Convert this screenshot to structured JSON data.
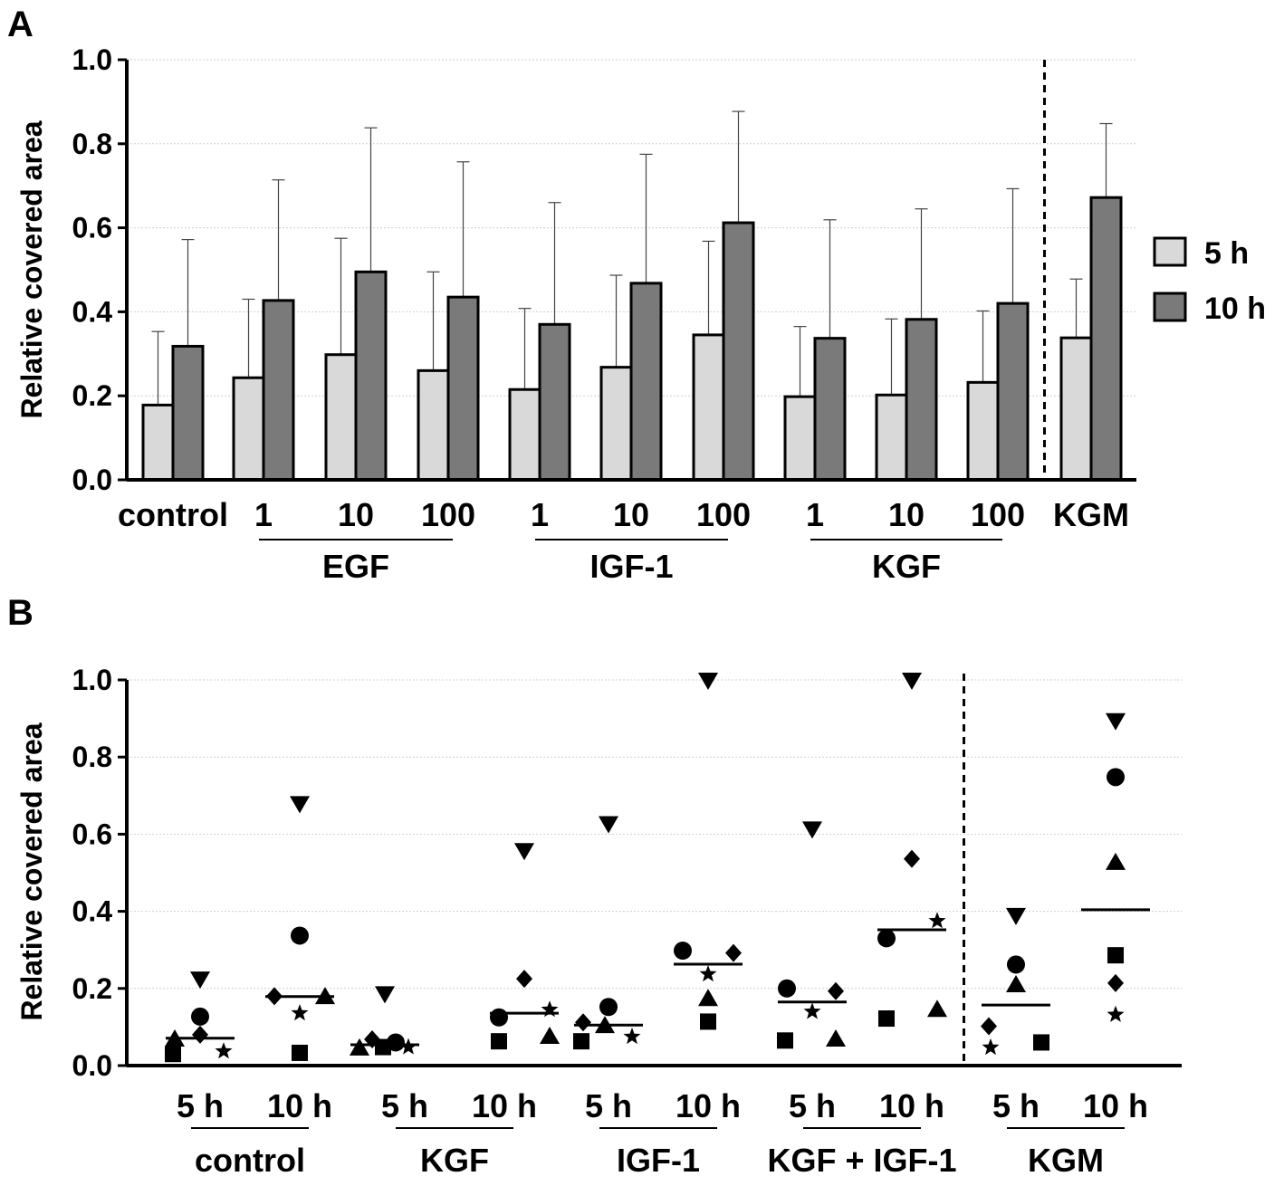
{
  "chart_data": [
    {
      "panel_label": "A",
      "type": "bar",
      "ylabel": "Relative covered area",
      "ylim": [
        0,
        1.0
      ],
      "yticks": [
        "0.0",
        "0.2",
        "0.4",
        "0.6",
        "0.8",
        "1.0"
      ],
      "ytick_values": [
        0,
        0.2,
        0.4,
        0.6,
        0.8,
        1.0
      ],
      "grid": true,
      "legend_position": "right",
      "colors": {
        "5 h": "#d9d9d9",
        "10 h": "#7a7a7a"
      },
      "categories": [
        "control",
        "1",
        "10",
        "100",
        "1",
        "10",
        "100",
        "1",
        "10",
        "100",
        "KGM"
      ],
      "groups": [
        {
          "label": "EGF",
          "from": 1,
          "to": 3
        },
        {
          "label": "IGF-1",
          "from": 4,
          "to": 6
        },
        {
          "label": "KGF",
          "from": 7,
          "to": 9
        }
      ],
      "separator_before_index": 10,
      "series": [
        {
          "name": "5 h",
          "values": [
            0.178,
            0.243,
            0.298,
            0.26,
            0.215,
            0.268,
            0.345,
            0.198,
            0.202,
            0.232,
            0.338
          ],
          "errors": [
            0.175,
            0.187,
            0.277,
            0.235,
            0.193,
            0.219,
            0.223,
            0.167,
            0.181,
            0.17,
            0.14
          ]
        },
        {
          "name": "10 h",
          "values": [
            0.318,
            0.427,
            0.495,
            0.435,
            0.37,
            0.468,
            0.612,
            0.337,
            0.382,
            0.42,
            0.672
          ],
          "errors": [
            0.254,
            0.287,
            0.343,
            0.322,
            0.29,
            0.307,
            0.265,
            0.282,
            0.263,
            0.273,
            0.176
          ]
        }
      ]
    },
    {
      "panel_label": "B",
      "type": "scatter",
      "ylabel": "Relative covered area",
      "ylim": [
        0,
        1.0
      ],
      "yticks": [
        "0.0",
        "0.2",
        "0.4",
        "0.6",
        "0.8",
        "1.0"
      ],
      "ytick_values": [
        0,
        0.2,
        0.4,
        0.6,
        0.8,
        1.0
      ],
      "grid": true,
      "x_labels": [
        "5 h",
        "10 h",
        "5 h",
        "10 h",
        "5 h",
        "10 h",
        "5 h",
        "10 h",
        "5 h",
        "10 h"
      ],
      "groups": [
        "control",
        "KGF",
        "IGF-1",
        "KGF + IGF-1",
        "KGM"
      ],
      "separator_before_index": 8,
      "medians": [
        0.071,
        0.179,
        0.054,
        0.136,
        0.105,
        0.263,
        0.165,
        0.352,
        0.157,
        0.404
      ],
      "points": [
        [
          {
            "m": "tri-down",
            "y": 0.225
          },
          {
            "m": "circle",
            "y": 0.127
          },
          {
            "m": "diamond",
            "y": 0.08
          },
          {
            "m": "triangle",
            "y": 0.068
          },
          {
            "m": "star",
            "y": 0.037
          },
          {
            "m": "square",
            "y": 0.03
          }
        ],
        [
          {
            "m": "tri-down",
            "y": 0.68
          },
          {
            "m": "circle",
            "y": 0.337
          },
          {
            "m": "diamond",
            "y": 0.18
          },
          {
            "m": "triangle",
            "y": 0.178
          },
          {
            "m": "star",
            "y": 0.136
          },
          {
            "m": "square",
            "y": 0.033
          }
        ],
        [
          {
            "m": "tri-down",
            "y": 0.187
          },
          {
            "m": "diamond",
            "y": 0.068
          },
          {
            "m": "circle",
            "y": 0.06
          },
          {
            "m": "star",
            "y": 0.048
          },
          {
            "m": "triangle",
            "y": 0.045
          },
          {
            "m": "square",
            "y": 0.048
          }
        ],
        [
          {
            "m": "tri-down",
            "y": 0.558
          },
          {
            "m": "diamond",
            "y": 0.225
          },
          {
            "m": "star",
            "y": 0.145
          },
          {
            "m": "circle",
            "y": 0.125
          },
          {
            "m": "triangle",
            "y": 0.075
          },
          {
            "m": "square",
            "y": 0.063
          }
        ],
        [
          {
            "m": "tri-down",
            "y": 0.628
          },
          {
            "m": "circle",
            "y": 0.152
          },
          {
            "m": "diamond",
            "y": 0.112
          },
          {
            "m": "triangle",
            "y": 0.103
          },
          {
            "m": "star",
            "y": 0.075
          },
          {
            "m": "square",
            "y": 0.063
          }
        ],
        [
          {
            "m": "tri-down",
            "y": 1.0
          },
          {
            "m": "circle",
            "y": 0.298
          },
          {
            "m": "diamond",
            "y": 0.292
          },
          {
            "m": "star",
            "y": 0.237
          },
          {
            "m": "triangle",
            "y": 0.173
          },
          {
            "m": "square",
            "y": 0.114
          }
        ],
        [
          {
            "m": "tri-down",
            "y": 0.614
          },
          {
            "m": "circle",
            "y": 0.2
          },
          {
            "m": "diamond",
            "y": 0.193
          },
          {
            "m": "star",
            "y": 0.14
          },
          {
            "m": "triangle",
            "y": 0.068
          },
          {
            "m": "square",
            "y": 0.065
          }
        ],
        [
          {
            "m": "tri-down",
            "y": 1.0
          },
          {
            "m": "diamond",
            "y": 0.536
          },
          {
            "m": "star",
            "y": 0.375
          },
          {
            "m": "circle",
            "y": 0.33
          },
          {
            "m": "triangle",
            "y": 0.145
          },
          {
            "m": "square",
            "y": 0.122
          }
        ],
        [
          {
            "m": "tri-down",
            "y": 0.39
          },
          {
            "m": "circle",
            "y": 0.262
          },
          {
            "m": "triangle",
            "y": 0.209
          },
          {
            "m": "diamond",
            "y": 0.102
          },
          {
            "m": "star",
            "y": 0.047
          },
          {
            "m": "square",
            "y": 0.06
          }
        ],
        [
          {
            "m": "tri-down",
            "y": 0.895
          },
          {
            "m": "circle",
            "y": 0.748
          },
          {
            "m": "triangle",
            "y": 0.526
          },
          {
            "m": "square",
            "y": 0.286
          },
          {
            "m": "diamond",
            "y": 0.214
          },
          {
            "m": "star",
            "y": 0.132
          }
        ]
      ]
    }
  ]
}
